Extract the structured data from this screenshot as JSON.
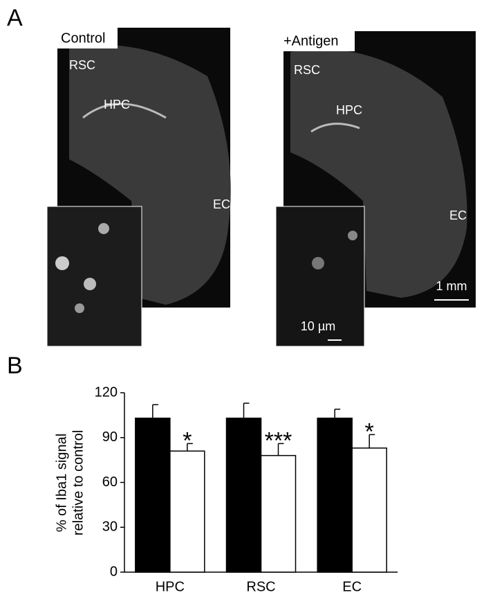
{
  "panel_a": {
    "label": "A",
    "images": [
      {
        "title": "Control",
        "regions": [
          "RSC",
          "HPC",
          "EC"
        ]
      },
      {
        "title": "+Antigen",
        "regions": [
          "RSC",
          "HPC",
          "EC"
        ],
        "scale_bar": "1 mm",
        "inset_scale_bar": "10 µm"
      }
    ]
  },
  "panel_b": {
    "label": "B"
  },
  "chart_data": {
    "type": "bar",
    "y_label": [
      "% of Iba1 signal",
      "relative to control"
    ],
    "categories": [
      "HPC",
      "RSC",
      "EC"
    ],
    "series": [
      {
        "color": "#000000",
        "values": [
          103,
          103,
          103
        ],
        "errors": [
          9,
          10,
          6
        ]
      },
      {
        "color": "#ffffff",
        "values": [
          81,
          78,
          83
        ],
        "errors": [
          5,
          8,
          9
        ]
      }
    ],
    "annotations": [
      "*",
      "***",
      "*"
    ],
    "ylim": [
      0,
      120
    ],
    "yticks": [
      0,
      30,
      60,
      90,
      120
    ],
    "grid": false
  }
}
